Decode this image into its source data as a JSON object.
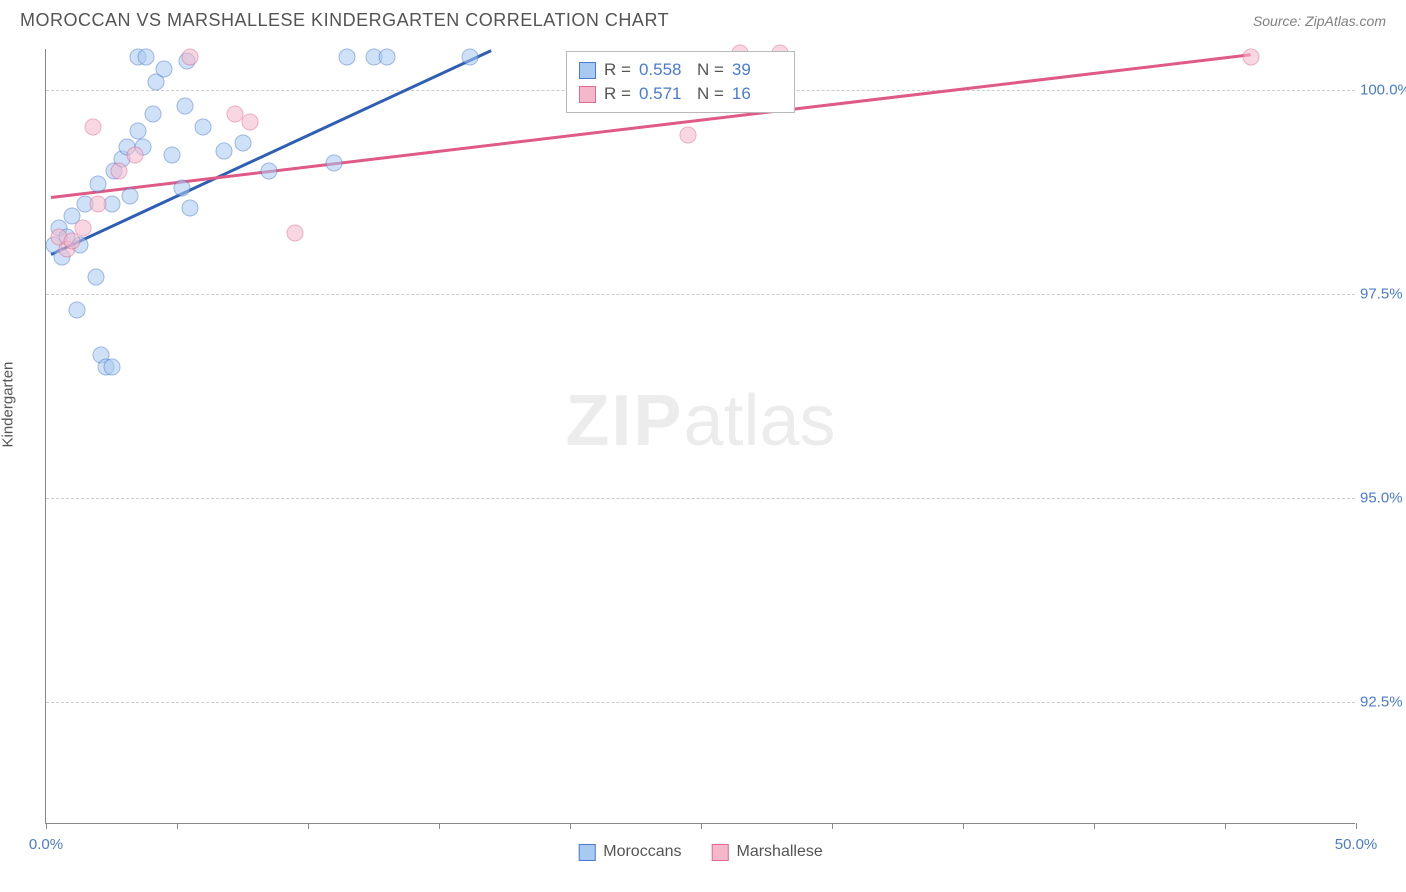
{
  "title": "MOROCCAN VS MARSHALLESE KINDERGARTEN CORRELATION CHART",
  "source": "Source: ZipAtlas.com",
  "y_axis_label": "Kindergarten",
  "watermark": {
    "bold": "ZIP",
    "rest": "atlas"
  },
  "chart": {
    "type": "scatter",
    "background_color": "#ffffff",
    "grid_color": "#cccccc",
    "axis_color": "#888888",
    "tick_color": "#4a7bd0",
    "xlim": [
      0.0,
      50.0
    ],
    "ylim": [
      91.0,
      100.5
    ],
    "x_ticks": [
      {
        "pos": 0.0,
        "label": "0.0%"
      },
      {
        "pos": 5.0,
        "label": ""
      },
      {
        "pos": 10.0,
        "label": ""
      },
      {
        "pos": 15.0,
        "label": ""
      },
      {
        "pos": 20.0,
        "label": ""
      },
      {
        "pos": 25.0,
        "label": ""
      },
      {
        "pos": 30.0,
        "label": ""
      },
      {
        "pos": 35.0,
        "label": ""
      },
      {
        "pos": 40.0,
        "label": ""
      },
      {
        "pos": 45.0,
        "label": ""
      },
      {
        "pos": 50.0,
        "label": "50.0%"
      }
    ],
    "y_ticks": [
      {
        "pos": 92.5,
        "label": "92.5%"
      },
      {
        "pos": 95.0,
        "label": "95.0%"
      },
      {
        "pos": 97.5,
        "label": "97.5%"
      },
      {
        "pos": 100.0,
        "label": "100.0%"
      }
    ],
    "series": [
      {
        "name": "Moroccans",
        "fill": "#a8c9f0",
        "stroke": "#4a7bd0",
        "trend_color": "#2e5fb5",
        "stats": {
          "R": "0.558",
          "N": "39"
        },
        "trend": {
          "x1": 0.2,
          "y1": 98.0,
          "x2": 17.0,
          "y2": 100.5
        },
        "points": [
          {
            "x": 0.3,
            "y": 98.1
          },
          {
            "x": 0.5,
            "y": 98.3
          },
          {
            "x": 0.8,
            "y": 98.2
          },
          {
            "x": 0.6,
            "y": 97.95
          },
          {
            "x": 1.0,
            "y": 98.45
          },
          {
            "x": 1.3,
            "y": 98.1
          },
          {
            "x": 1.5,
            "y": 98.6
          },
          {
            "x": 1.9,
            "y": 97.7
          },
          {
            "x": 1.2,
            "y": 97.3
          },
          {
            "x": 2.1,
            "y": 96.75
          },
          {
            "x": 2.3,
            "y": 96.6
          },
          {
            "x": 2.5,
            "y": 96.6
          },
          {
            "x": 2.0,
            "y": 98.85
          },
          {
            "x": 2.5,
            "y": 98.6
          },
          {
            "x": 2.6,
            "y": 99.0
          },
          {
            "x": 2.9,
            "y": 99.15
          },
          {
            "x": 3.1,
            "y": 99.3
          },
          {
            "x": 3.5,
            "y": 99.5
          },
          {
            "x": 3.7,
            "y": 99.3
          },
          {
            "x": 3.2,
            "y": 98.7
          },
          {
            "x": 3.5,
            "y": 100.4
          },
          {
            "x": 3.8,
            "y": 100.4
          },
          {
            "x": 4.2,
            "y": 100.1
          },
          {
            "x": 4.5,
            "y": 100.25
          },
          {
            "x": 4.1,
            "y": 99.7
          },
          {
            "x": 4.8,
            "y": 99.2
          },
          {
            "x": 5.3,
            "y": 99.8
          },
          {
            "x": 5.4,
            "y": 100.35
          },
          {
            "x": 5.2,
            "y": 98.8
          },
          {
            "x": 5.5,
            "y": 98.55
          },
          {
            "x": 6.0,
            "y": 99.55
          },
          {
            "x": 6.8,
            "y": 99.25
          },
          {
            "x": 7.5,
            "y": 99.35
          },
          {
            "x": 8.5,
            "y": 99.0
          },
          {
            "x": 11.0,
            "y": 99.1
          },
          {
            "x": 11.5,
            "y": 100.4
          },
          {
            "x": 12.5,
            "y": 100.4
          },
          {
            "x": 13.0,
            "y": 100.4
          },
          {
            "x": 16.2,
            "y": 100.4
          }
        ]
      },
      {
        "name": "Marshallese",
        "fill": "#f5b8cb",
        "stroke": "#e06a92",
        "trend_color": "#df5a86",
        "stats": {
          "R": "0.571",
          "N": "16"
        },
        "trend": {
          "x1": 0.2,
          "y1": 98.7,
          "x2": 46.0,
          "y2": 100.45
        },
        "points": [
          {
            "x": 0.5,
            "y": 98.2
          },
          {
            "x": 0.8,
            "y": 98.05
          },
          {
            "x": 1.0,
            "y": 98.15
          },
          {
            "x": 1.4,
            "y": 98.3
          },
          {
            "x": 1.8,
            "y": 99.55
          },
          {
            "x": 2.0,
            "y": 98.6
          },
          {
            "x": 2.8,
            "y": 99.0
          },
          {
            "x": 3.4,
            "y": 99.2
          },
          {
            "x": 5.5,
            "y": 100.4
          },
          {
            "x": 7.2,
            "y": 99.7
          },
          {
            "x": 7.8,
            "y": 99.6
          },
          {
            "x": 9.5,
            "y": 98.25
          },
          {
            "x": 24.5,
            "y": 99.45
          },
          {
            "x": 26.5,
            "y": 100.45
          },
          {
            "x": 28.0,
            "y": 100.45
          },
          {
            "x": 46.0,
            "y": 100.4
          }
        ]
      }
    ],
    "legend": [
      {
        "label": "Moroccans",
        "fill": "#a8c9f0",
        "stroke": "#4a7bd0"
      },
      {
        "label": "Marshallese",
        "fill": "#f5b8cb",
        "stroke": "#e06a92"
      }
    ]
  }
}
